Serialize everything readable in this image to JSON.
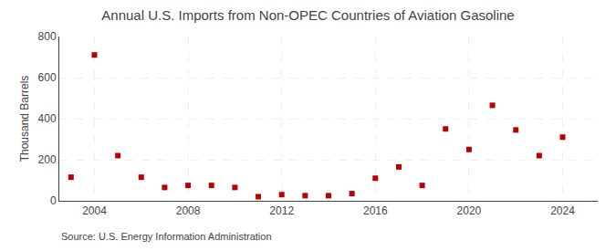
{
  "chart_data": {
    "type": "scatter",
    "title": "Annual U.S. Imports from Non-OPEC Countries of Aviation Gasoline",
    "ylabel": "Thousand Barrels",
    "annotations": [
      "Source: U.S. Energy Information Administration"
    ],
    "x": [
      2003,
      2004,
      2005,
      2006,
      2007,
      2008,
      2009,
      2010,
      2011,
      2012,
      2013,
      2014,
      2015,
      2016,
      2017,
      2018,
      2019,
      2020,
      2021,
      2022,
      2023,
      2024
    ],
    "values": [
      115,
      710,
      220,
      115,
      65,
      75,
      75,
      65,
      20,
      30,
      25,
      25,
      35,
      110,
      165,
      75,
      350,
      250,
      465,
      345,
      220,
      310
    ],
    "color": "#bb0000",
    "marker": "square",
    "xlim": [
      2002.5,
      2025.5
    ],
    "xticks": [
      2004,
      2008,
      2012,
      2016,
      2020,
      2024
    ],
    "ylim": [
      0,
      800
    ],
    "yticks": [
      0,
      200,
      400,
      600,
      800
    ],
    "grid": true
  }
}
